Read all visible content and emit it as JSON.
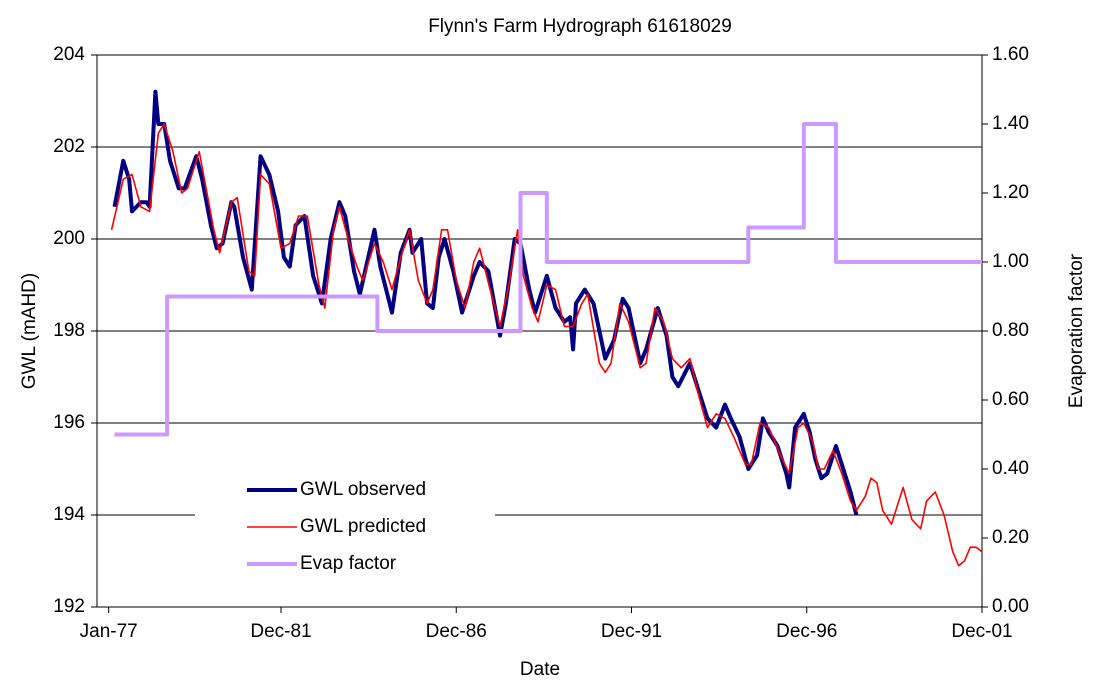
{
  "chart_data": {
    "type": "line",
    "title": "Flynn's Farm Hydrograph 61618029",
    "xlabel": "Date",
    "ylabel": "GWL (mAHD)",
    "y2label": "Evaporation factor",
    "xlim": [
      "1976-09",
      "2001-12"
    ],
    "xticks": [
      {
        "value": "1977-01",
        "label": "Jan-77"
      },
      {
        "value": "1981-12",
        "label": "Dec-81"
      },
      {
        "value": "1986-12",
        "label": "Dec-86"
      },
      {
        "value": "1991-12",
        "label": "Dec-91"
      },
      {
        "value": "1996-12",
        "label": "Dec-96"
      },
      {
        "value": "2001-12",
        "label": "Dec-01"
      }
    ],
    "ylim": [
      192,
      204
    ],
    "yticks": [
      192,
      194,
      196,
      198,
      200,
      202,
      204
    ],
    "y2lim": [
      0,
      1.6
    ],
    "y2ticks": [
      {
        "value": 0,
        "label": "0.00"
      },
      {
        "value": 0.2,
        "label": "0.20"
      },
      {
        "value": 0.4,
        "label": "0.40"
      },
      {
        "value": 0.6,
        "label": "0.60"
      },
      {
        "value": 0.8,
        "label": "0.80"
      },
      {
        "value": 1.0,
        "label": "1.00"
      },
      {
        "value": 1.2,
        "label": "1.20"
      },
      {
        "value": 1.4,
        "label": "1.40"
      },
      {
        "value": 1.6,
        "label": "1.60"
      }
    ],
    "grid": true,
    "legend": "lower left",
    "series": [
      {
        "name": "GWL observed",
        "color": "#000080",
        "width": 4,
        "x": [
          "1977-03",
          "1977-06",
          "1977-08",
          "1977-09",
          "1977-12",
          "1978-02",
          "1978-03",
          "1978-05",
          "1978-06",
          "1978-08",
          "1978-10",
          "1979-01",
          "1979-03",
          "1979-07",
          "1979-09",
          "1979-12",
          "1980-02",
          "1980-04",
          "1980-07",
          "1980-08",
          "1980-11",
          "1981-02",
          "1981-05",
          "1981-08",
          "1981-11",
          "1982-01",
          "1982-03",
          "1982-05",
          "1982-08",
          "1982-11",
          "1983-02",
          "1983-05",
          "1983-08",
          "1983-10",
          "1984-01",
          "1984-03",
          "1984-08",
          "1984-10",
          "1985-02",
          "1985-05",
          "1985-08",
          "1985-09",
          "1985-12",
          "1986-02",
          "1986-04",
          "1986-06",
          "1986-08",
          "1986-11",
          "1987-02",
          "1987-06",
          "1987-08",
          "1987-11",
          "1988-03",
          "1988-05",
          "1988-08",
          "1988-10",
          "1989-01",
          "1989-03",
          "1989-07",
          "1989-10",
          "1990-01",
          "1990-03",
          "1990-04",
          "1990-05",
          "1990-08",
          "1990-11",
          "1991-03",
          "1991-06",
          "1991-09",
          "1991-11",
          "1992-03",
          "1992-05",
          "1992-09",
          "1992-12",
          "1993-02",
          "1993-04",
          "1993-08",
          "1993-11",
          "1994-02",
          "1994-05",
          "1994-08",
          "1994-10",
          "1995-01",
          "1995-04",
          "1995-07",
          "1995-09",
          "1995-11",
          "1996-02",
          "1996-05",
          "1996-06",
          "1996-08",
          "1996-11",
          "1997-01",
          "1997-03",
          "1997-05",
          "1997-07",
          "1997-10",
          "1998-01",
          "1998-03",
          "1998-05"
        ],
        "values": [
          200.7,
          201.7,
          201.3,
          200.6,
          200.8,
          200.8,
          200.7,
          203.2,
          202.5,
          202.5,
          201.7,
          201.1,
          201.1,
          201.8,
          201.3,
          200.3,
          199.8,
          199.9,
          200.8,
          200.7,
          199.6,
          198.9,
          201.8,
          201.4,
          200.6,
          199.6,
          199.4,
          200.3,
          200.5,
          199.2,
          198.6,
          200.0,
          200.8,
          200.5,
          199.3,
          198.8,
          200.2,
          199.4,
          198.4,
          199.7,
          200.2,
          199.7,
          200.0,
          198.6,
          198.5,
          199.6,
          200.0,
          199.3,
          198.4,
          199.2,
          199.5,
          199.3,
          197.9,
          198.6,
          200.0,
          199.9,
          198.9,
          198.4,
          199.2,
          198.5,
          198.2,
          198.3,
          197.6,
          198.6,
          198.9,
          198.6,
          197.4,
          197.8,
          198.7,
          198.5,
          197.3,
          197.6,
          198.5,
          197.9,
          197.0,
          196.8,
          197.3,
          196.7,
          196.1,
          195.9,
          196.4,
          196.1,
          195.7,
          195.0,
          195.3,
          196.1,
          195.8,
          195.5,
          194.9,
          194.6,
          195.9,
          196.2,
          195.8,
          195.2,
          194.8,
          194.9,
          195.5,
          194.9,
          194.5,
          194.0
        ]
      },
      {
        "name": "GWL predicted",
        "color": "#ff0000",
        "width": 1.6,
        "x": [
          "1977-02",
          "1977-06",
          "1977-09",
          "1977-12",
          "1978-03",
          "1978-06",
          "1978-08",
          "1978-11",
          "1979-02",
          "1979-04",
          "1979-08",
          "1980-01",
          "1980-03",
          "1980-07",
          "1980-09",
          "1981-01",
          "1981-03",
          "1981-05",
          "1981-08",
          "1981-12",
          "1982-03",
          "1982-06",
          "1982-09",
          "1983-01",
          "1983-03",
          "1983-06",
          "1983-08",
          "1983-11",
          "1984-02",
          "1984-04",
          "1984-08",
          "1984-11",
          "1985-02",
          "1985-05",
          "1985-08",
          "1985-11",
          "1986-02",
          "1986-04",
          "1986-07",
          "1986-09",
          "1986-12",
          "1987-03",
          "1987-06",
          "1987-08",
          "1987-12",
          "1988-03",
          "1988-06",
          "1988-09",
          "1988-11",
          "1989-02",
          "1989-04",
          "1989-07",
          "1989-10",
          "1990-01",
          "1990-04",
          "1990-07",
          "1990-09",
          "1991-01",
          "1991-03",
          "1991-05",
          "1991-08",
          "1991-11",
          "1992-03",
          "1992-05",
          "1992-08",
          "1992-11",
          "1993-02",
          "1993-05",
          "1993-08",
          "1993-11",
          "1994-02",
          "1994-05",
          "1994-08",
          "1994-11",
          "1995-03",
          "1995-05",
          "1995-08",
          "1995-11",
          "1996-03",
          "1996-06",
          "1996-09",
          "1996-11",
          "1997-02",
          "1997-04",
          "1997-06",
          "1997-09",
          "1997-12",
          "1998-03",
          "1998-05",
          "1998-08",
          "1998-10",
          "1998-12",
          "1999-02",
          "1999-05",
          "1999-07",
          "1999-09",
          "1999-12",
          "2000-03",
          "2000-05",
          "2000-08",
          "2000-11",
          "2001-02",
          "2001-04",
          "2001-06",
          "2001-08",
          "2001-10",
          "2001-12"
        ],
        "values": [
          200.2,
          201.3,
          201.4,
          200.7,
          200.6,
          202.3,
          202.5,
          201.9,
          201.0,
          201.1,
          201.9,
          200.2,
          199.7,
          200.8,
          200.9,
          199.3,
          199.2,
          201.4,
          201.2,
          199.8,
          199.9,
          200.5,
          200.5,
          199.0,
          198.5,
          200.2,
          200.7,
          200.0,
          199.4,
          199.1,
          199.9,
          199.5,
          198.9,
          199.6,
          200.2,
          199.1,
          198.6,
          198.9,
          200.2,
          200.2,
          199.1,
          198.5,
          199.5,
          199.8,
          198.8,
          198.1,
          199.0,
          200.2,
          199.2,
          198.5,
          198.2,
          199.0,
          198.9,
          198.1,
          198.1,
          198.6,
          198.8,
          197.3,
          197.1,
          197.3,
          198.6,
          198.2,
          197.2,
          197.3,
          198.5,
          198.2,
          197.4,
          197.2,
          197.4,
          196.6,
          195.9,
          196.2,
          196.1,
          195.7,
          195.1,
          195.1,
          196.0,
          195.9,
          195.3,
          194.9,
          195.9,
          196.0,
          195.6,
          195.0,
          195.0,
          195.4,
          194.9,
          194.3,
          194.1,
          194.4,
          194.8,
          194.7,
          194.1,
          193.8,
          194.2,
          194.6,
          193.9,
          193.7,
          194.3,
          194.5,
          194.0,
          193.2,
          192.9,
          193.0,
          193.3,
          193.3,
          193.2
        ]
      },
      {
        "name": "Evap factor",
        "color": "#cc99ff",
        "width": 4,
        "axis": "y2",
        "x": [
          "1977-03",
          "1978-09",
          "1978-09",
          "1984-09",
          "1984-09",
          "1988-10",
          "1988-10",
          "1989-07",
          "1989-07",
          "1995-04",
          "1995-04",
          "1996-11",
          "1996-11",
          "1997-10",
          "1997-10",
          "2001-12"
        ],
        "values": [
          0.5,
          0.5,
          0.9,
          0.9,
          0.8,
          0.8,
          1.2,
          1.2,
          1.0,
          1.0,
          1.1,
          1.1,
          1.4,
          1.4,
          1.0,
          1.0
        ]
      }
    ]
  }
}
